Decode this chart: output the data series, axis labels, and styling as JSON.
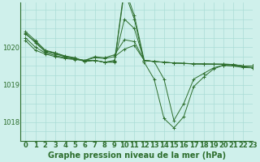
{
  "background_color": "#cff0eb",
  "grid_color": "#aaddd6",
  "line_color": "#2d6e2d",
  "marker_color": "#2d6e2d",
  "xlabel": "Graphe pression niveau de la mer (hPa)",
  "xlabel_fontsize": 7,
  "tick_fontsize": 6,
  "yticks": [
    1018,
    1019,
    1020
  ],
  "ylim": [
    1017.5,
    1021.2
  ],
  "xlim": [
    -0.5,
    23
  ],
  "series": [
    [
      1020.35,
      1020.15,
      1019.9,
      1019.85,
      1019.75,
      1019.7,
      1019.65,
      1019.65,
      1019.6,
      1019.65,
      1020.75,
      1020.5,
      1019.65,
      1019.62,
      1019.6,
      1019.58,
      1019.57,
      1019.56,
      1019.56,
      1019.55,
      1019.55,
      1019.54,
      1019.5,
      1019.5
    ],
    [
      1020.25,
      1020.0,
      1019.85,
      1019.78,
      1019.72,
      1019.68,
      1019.65,
      1019.75,
      1019.72,
      1019.8,
      1020.2,
      1020.15,
      1019.65,
      1019.62,
      1019.6,
      1019.58,
      1019.57,
      1019.56,
      1019.55,
      1019.55,
      1019.55,
      1019.54,
      1019.5,
      1019.5
    ],
    [
      1020.18,
      1019.92,
      1019.82,
      1019.75,
      1019.7,
      1019.67,
      1019.65,
      1019.72,
      1019.7,
      1019.75,
      1019.95,
      1020.05,
      1019.65,
      1019.62,
      1019.6,
      1019.58,
      1019.57,
      1019.55,
      1019.55,
      1019.55,
      1019.54,
      1019.53,
      1019.5,
      1019.5
    ],
    [
      1020.38,
      1020.12,
      1019.88,
      1019.82,
      1019.75,
      1019.7,
      1019.62,
      1019.65,
      1019.6,
      1019.62,
      1021.6,
      1020.85,
      1019.65,
      1019.62,
      1019.15,
      1018.05,
      1018.5,
      1019.15,
      1019.3,
      1019.45,
      1019.52,
      1019.5,
      1019.48,
      1019.46
    ],
    [
      1020.42,
      1020.18,
      1019.92,
      1019.85,
      1019.77,
      1019.72,
      1019.62,
      1019.65,
      1019.6,
      1019.6,
      1021.5,
      1020.75,
      1019.6,
      1019.15,
      1018.1,
      1017.85,
      1018.15,
      1018.95,
      1019.2,
      1019.42,
      1019.52,
      1019.5,
      1019.46,
      1019.45
    ]
  ]
}
